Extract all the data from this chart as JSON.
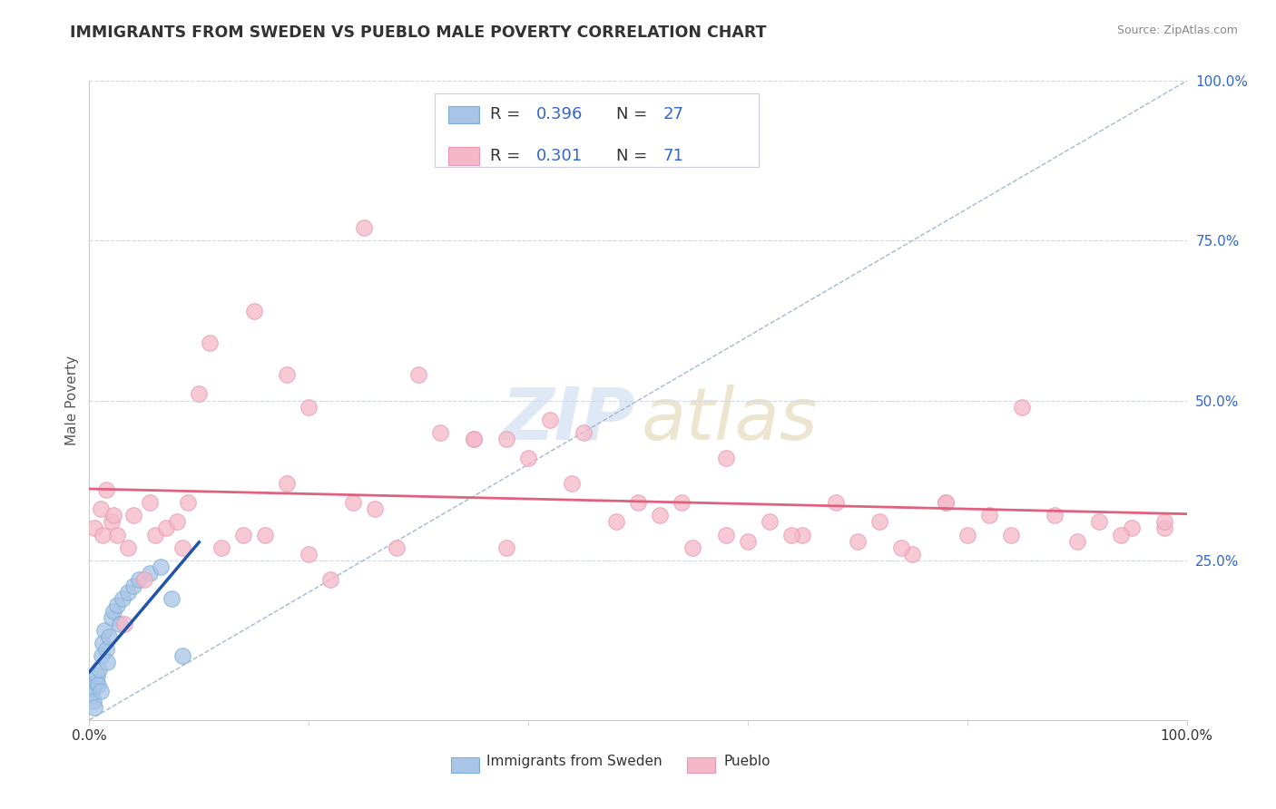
{
  "title": "IMMIGRANTS FROM SWEDEN VS PUEBLO MALE POVERTY CORRELATION CHART",
  "source": "Source: ZipAtlas.com",
  "ylabel": "Male Poverty",
  "legend_label1": "Immigrants from Sweden",
  "legend_label2": "Pueblo",
  "R1_text": "0.396",
  "N1_text": "27",
  "R2_text": "0.301",
  "N2_text": "71",
  "blue_fill": "#a8c4e6",
  "blue_edge": "#7aaed6",
  "pink_fill": "#f5b8c8",
  "pink_edge": "#e898b0",
  "blue_line_color": "#2255aa",
  "pink_line_color": "#e06080",
  "ref_line_color": "#9ab0cc",
  "grid_color": "#d0d8e8",
  "text_color": "#333333",
  "blue_val_color": "#3366cc",
  "source_color": "#888888",
  "ylabel_color": "#555555",
  "watermark_zip_color": "#c5d8f0",
  "watermark_atlas_color": "#ddd0a8",
  "right_tick_color": "#3366cc",
  "sweden_x": [
    0.2,
    0.3,
    0.4,
    0.5,
    0.6,
    0.7,
    0.8,
    0.9,
    1.0,
    1.1,
    1.2,
    1.4,
    1.5,
    1.6,
    1.8,
    2.0,
    2.2,
    2.5,
    2.8,
    3.0,
    3.5,
    4.0,
    4.5,
    5.5,
    6.5,
    7.5,
    8.5
  ],
  "sweden_y": [
    4.0,
    5.0,
    3.0,
    2.0,
    6.0,
    7.0,
    5.5,
    8.0,
    4.5,
    10.0,
    12.0,
    14.0,
    11.0,
    9.0,
    13.0,
    16.0,
    17.0,
    18.0,
    15.0,
    19.0,
    20.0,
    21.0,
    22.0,
    23.0,
    24.0,
    19.0,
    10.0
  ],
  "pueblo_x": [
    0.5,
    1.0,
    1.5,
    2.0,
    2.5,
    3.5,
    4.0,
    5.0,
    6.0,
    7.0,
    8.0,
    9.0,
    10.0,
    12.0,
    14.0,
    16.0,
    18.0,
    20.0,
    22.0,
    24.0,
    26.0,
    28.0,
    30.0,
    32.0,
    35.0,
    38.0,
    40.0,
    42.0,
    45.0,
    48.0,
    50.0,
    52.0,
    55.0,
    58.0,
    60.0,
    62.0,
    65.0,
    68.0,
    70.0,
    72.0,
    75.0,
    78.0,
    80.0,
    82.0,
    85.0,
    88.0,
    90.0,
    92.0,
    95.0,
    98.0,
    1.2,
    2.2,
    3.2,
    5.5,
    8.5,
    11.0,
    15.0,
    20.0,
    25.0,
    35.0,
    44.0,
    54.0,
    64.0,
    74.0,
    84.0,
    94.0,
    18.0,
    38.0,
    58.0,
    78.0,
    98.0
  ],
  "pueblo_y": [
    30.0,
    33.0,
    36.0,
    31.0,
    29.0,
    27.0,
    32.0,
    22.0,
    29.0,
    30.0,
    31.0,
    34.0,
    51.0,
    27.0,
    29.0,
    29.0,
    37.0,
    26.0,
    22.0,
    34.0,
    33.0,
    27.0,
    54.0,
    45.0,
    44.0,
    27.0,
    41.0,
    47.0,
    45.0,
    31.0,
    34.0,
    32.0,
    27.0,
    29.0,
    28.0,
    31.0,
    29.0,
    34.0,
    28.0,
    31.0,
    26.0,
    34.0,
    29.0,
    32.0,
    49.0,
    32.0,
    28.0,
    31.0,
    30.0,
    30.0,
    29.0,
    32.0,
    15.0,
    34.0,
    27.0,
    59.0,
    64.0,
    49.0,
    77.0,
    44.0,
    37.0,
    34.0,
    29.0,
    27.0,
    29.0,
    29.0,
    54.0,
    44.0,
    41.0,
    34.0,
    31.0
  ]
}
